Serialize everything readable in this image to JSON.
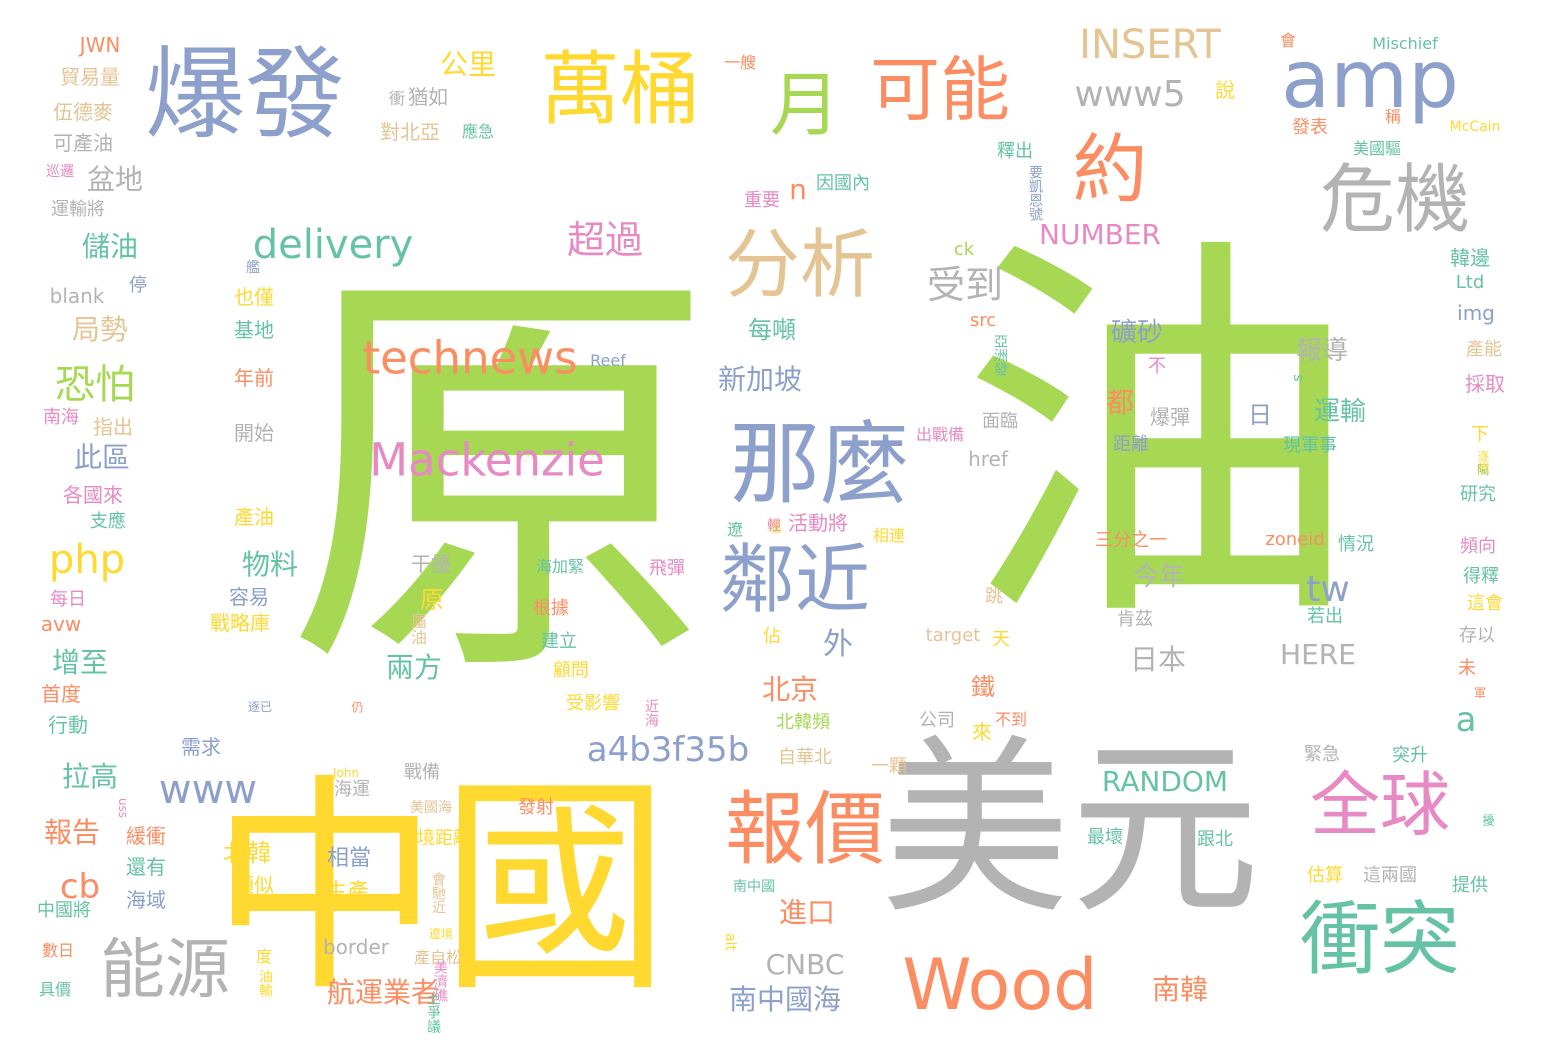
{
  "colors": {
    "green": "#a6d854",
    "yellow": "#ffd92f",
    "gray": "#b3b3b3",
    "blue": "#8da0cb",
    "orange": "#fc8d62",
    "teal": "#66c2a5",
    "pink": "#e78ac3",
    "tan": "#e5c494"
  },
  "words": [
    {
      "text": "原",
      "c": "green"
    },
    {
      "text": "油",
      "c": "green"
    },
    {
      "text": "中國",
      "c": "yellow"
    },
    {
      "text": "美元",
      "c": "gray"
    },
    {
      "text": "爆發",
      "c": "blue"
    },
    {
      "text": "萬桶",
      "c": "yellow"
    },
    {
      "text": "可能",
      "c": "orange"
    },
    {
      "text": "amp",
      "c": "blue"
    },
    {
      "text": "月",
      "c": "green"
    },
    {
      "text": "危機",
      "c": "gray"
    },
    {
      "text": "約",
      "c": "orange"
    },
    {
      "text": "分析",
      "c": "tan"
    },
    {
      "text": "那麼",
      "c": "blue"
    },
    {
      "text": "鄰近",
      "c": "blue"
    },
    {
      "text": "報價",
      "c": "orange"
    },
    {
      "text": "全球",
      "c": "pink"
    },
    {
      "text": "衝突",
      "c": "teal"
    },
    {
      "text": "Wood",
      "c": "orange"
    },
    {
      "text": "能源",
      "c": "gray"
    },
    {
      "text": "technews",
      "c": "orange"
    },
    {
      "text": "Mackenzie",
      "c": "pink"
    },
    {
      "text": "delivery",
      "c": "teal"
    },
    {
      "text": "INSERT",
      "c": "tan"
    },
    {
      "text": "www5",
      "c": "gray"
    },
    {
      "text": "超過",
      "c": "pink"
    },
    {
      "text": "受到",
      "c": "gray"
    },
    {
      "text": "NUMBER",
      "c": "pink"
    },
    {
      "text": "a4b3f35b",
      "c": "blue"
    },
    {
      "text": "www",
      "c": "blue"
    },
    {
      "text": "php",
      "c": "yellow"
    },
    {
      "text": "恐怕",
      "c": "green"
    },
    {
      "text": "RANDOM",
      "c": "teal"
    },
    {
      "text": "cb",
      "c": "orange"
    },
    {
      "text": "tw",
      "c": "blue"
    },
    {
      "text": "HERE",
      "c": "gray"
    },
    {
      "text": "CNBC",
      "c": "gray"
    },
    {
      "text": "南韓",
      "c": "orange"
    },
    {
      "text": "n",
      "c": "orange"
    },
    {
      "text": "a",
      "c": "teal"
    },
    {
      "text": "公里",
      "c": "yellow"
    },
    {
      "text": "盆地",
      "c": "gray"
    },
    {
      "text": "儲油",
      "c": "teal"
    },
    {
      "text": "局勢",
      "c": "tan"
    },
    {
      "text": "此區",
      "c": "blue"
    },
    {
      "text": "增至",
      "c": "teal"
    },
    {
      "text": "拉高",
      "c": "teal"
    },
    {
      "text": "報告",
      "c": "orange"
    },
    {
      "text": "物料",
      "c": "teal"
    },
    {
      "text": "兩方",
      "c": "teal"
    },
    {
      "text": "北京",
      "c": "orange"
    },
    {
      "text": "新加坡",
      "c": "blue"
    },
    {
      "text": "每噸",
      "c": "teal"
    },
    {
      "text": "礦砂",
      "c": "blue"
    },
    {
      "text": "報導",
      "c": "gray"
    },
    {
      "text": "運輸",
      "c": "teal"
    },
    {
      "text": "今年",
      "c": "gray"
    },
    {
      "text": "日本",
      "c": "gray"
    },
    {
      "text": "進口",
      "c": "orange"
    },
    {
      "text": "航運業者",
      "c": "orange"
    },
    {
      "text": "南中國海",
      "c": "blue"
    },
    {
      "text": "北韓",
      "c": "yellow"
    },
    {
      "text": "相當",
      "c": "blue"
    },
    {
      "text": "生產",
      "c": "yellow"
    },
    {
      "text": "外",
      "c": "blue"
    },
    {
      "text": "原",
      "c": "yellow"
    },
    {
      "text": "都",
      "c": "orange"
    },
    {
      "text": "日",
      "c": "blue"
    },
    {
      "text": "JWN",
      "c": "orange"
    },
    {
      "text": "貿易量",
      "c": "tan"
    },
    {
      "text": "伍德麥",
      "c": "tan"
    },
    {
      "text": "可產油",
      "c": "gray"
    },
    {
      "text": "運輸將",
      "c": "gray"
    },
    {
      "text": "blank",
      "c": "gray"
    },
    {
      "text": "停",
      "c": "blue"
    },
    {
      "text": "指出",
      "c": "tan"
    },
    {
      "text": "南海",
      "c": "pink"
    },
    {
      "text": "各國來",
      "c": "pink"
    },
    {
      "text": "支應",
      "c": "teal"
    },
    {
      "text": "每日",
      "c": "pink"
    },
    {
      "text": "avw",
      "c": "orange"
    },
    {
      "text": "首度",
      "c": "orange"
    },
    {
      "text": "行動",
      "c": "teal"
    },
    {
      "text": "緩衝",
      "c": "orange"
    },
    {
      "text": "還有",
      "c": "teal"
    },
    {
      "text": "海域",
      "c": "blue"
    },
    {
      "text": "中國將",
      "c": "teal"
    },
    {
      "text": "數日",
      "c": "orange"
    },
    {
      "text": "具價",
      "c": "teal"
    },
    {
      "text": "類似",
      "c": "yellow"
    },
    {
      "text": "border",
      "c": "gray"
    },
    {
      "text": "也僅",
      "c": "yellow"
    },
    {
      "text": "基地",
      "c": "teal"
    },
    {
      "text": "年前",
      "c": "orange"
    },
    {
      "text": "開始",
      "c": "gray"
    },
    {
      "text": "產油",
      "c": "yellow"
    },
    {
      "text": "干擾",
      "c": "gray"
    },
    {
      "text": "容易",
      "c": "blue"
    },
    {
      "text": "戰略庫",
      "c": "yellow"
    },
    {
      "text": "需求",
      "c": "blue"
    },
    {
      "text": "猶如",
      "c": "gray"
    },
    {
      "text": "對北亞",
      "c": "tan"
    },
    {
      "text": "釋出",
      "c": "teal"
    },
    {
      "text": "因國內",
      "c": "teal"
    },
    {
      "text": "重要",
      "c": "pink"
    },
    {
      "text": "ck",
      "c": "green"
    },
    {
      "text": "src",
      "c": "orange"
    },
    {
      "text": "出戰備",
      "c": "pink"
    },
    {
      "text": "面臨",
      "c": "gray"
    },
    {
      "text": "距離",
      "c": "blue"
    },
    {
      "text": "現軍事",
      "c": "teal"
    },
    {
      "text": "活動將",
      "c": "pink"
    },
    {
      "text": "三分之一",
      "c": "orange"
    },
    {
      "text": "zoneid",
      "c": "orange"
    },
    {
      "text": "情況",
      "c": "teal"
    },
    {
      "text": "肯茲",
      "c": "gray"
    },
    {
      "text": "若出",
      "c": "teal"
    },
    {
      "text": "target",
      "c": "tan"
    },
    {
      "text": "天",
      "c": "yellow"
    },
    {
      "text": "佔",
      "c": "yellow"
    },
    {
      "text": "飛彈",
      "c": "pink"
    },
    {
      "text": "根據",
      "c": "orange"
    },
    {
      "text": "建立",
      "c": "teal"
    },
    {
      "text": "顧問",
      "c": "yellow"
    },
    {
      "text": "受影響",
      "c": "yellow"
    },
    {
      "text": "北韓頻",
      "c": "green"
    },
    {
      "text": "自華北",
      "c": "tan"
    },
    {
      "text": "公司",
      "c": "gray"
    },
    {
      "text": "一顆",
      "c": "tan"
    },
    {
      "text": "緊急",
      "c": "gray"
    },
    {
      "text": "突升",
      "c": "teal"
    },
    {
      "text": "跟北",
      "c": "teal"
    },
    {
      "text": "最壞",
      "c": "teal"
    },
    {
      "text": "估算",
      "c": "yellow"
    },
    {
      "text": "這兩國",
      "c": "gray"
    },
    {
      "text": "提供",
      "c": "teal"
    },
    {
      "text": "戰備",
      "c": "gray"
    },
    {
      "text": "海運",
      "c": "gray"
    },
    {
      "text": "發射",
      "c": "orange"
    },
    {
      "text": "境距離",
      "c": "yellow"
    },
    {
      "text": "未",
      "c": "orange"
    },
    {
      "text": "存以",
      "c": "gray"
    },
    {
      "text": "下",
      "c": "yellow"
    },
    {
      "text": "研究",
      "c": "teal"
    },
    {
      "text": "頻向",
      "c": "pink"
    },
    {
      "text": "得釋",
      "c": "teal"
    },
    {
      "text": "這會",
      "c": "yellow"
    },
    {
      "text": "產能",
      "c": "tan"
    },
    {
      "text": "採取",
      "c": "pink"
    },
    {
      "text": "img",
      "c": "blue"
    },
    {
      "text": "Ltd",
      "c": "teal"
    },
    {
      "text": "韓邊",
      "c": "teal"
    },
    {
      "text": "發表",
      "c": "orange"
    },
    {
      "text": "應急",
      "c": "teal"
    },
    {
      "text": "說",
      "c": "yellow"
    },
    {
      "text": "會",
      "c": "orange"
    },
    {
      "text": "Mischief",
      "c": "teal"
    },
    {
      "text": "McCain",
      "c": "yellow"
    },
    {
      "text": "美國驅",
      "c": "teal"
    },
    {
      "text": "稱",
      "c": "orange"
    },
    {
      "text": "巡邏",
      "c": "pink"
    },
    {
      "text": "一艘",
      "c": "orange"
    },
    {
      "text": "衝",
      "c": "gray"
    },
    {
      "text": "艦",
      "c": "blue"
    },
    {
      "text": "Reef",
      "c": "blue"
    },
    {
      "text": "不",
      "c": "pink"
    },
    {
      "text": "爆彈",
      "c": "gray"
    },
    {
      "text": "href",
      "c": "gray"
    },
    {
      "text": "鐵",
      "c": "orange"
    },
    {
      "text": "來",
      "c": "yellow"
    },
    {
      "text": "跳",
      "c": "tan"
    },
    {
      "text": "alt",
      "c": "yellow"
    },
    {
      "text": "uss",
      "c": "pink"
    },
    {
      "text": "John",
      "c": "yellow"
    },
    {
      "text": "美國海",
      "c": "tan"
    },
    {
      "text": "近海",
      "c": "pink"
    },
    {
      "text": "仍",
      "c": "orange"
    },
    {
      "text": "逐已",
      "c": "blue"
    },
    {
      "text": "相連",
      "c": "yellow"
    },
    {
      "text": "遼",
      "c": "teal"
    },
    {
      "text": "海加緊",
      "c": "teal"
    },
    {
      "text": "產自松",
      "c": "tan"
    },
    {
      "text": "屬油",
      "c": "tan"
    },
    {
      "text": "南中國",
      "c": "teal"
    },
    {
      "text": "不到",
      "c": "orange"
    },
    {
      "text": "美濟礁",
      "c": "pink"
    },
    {
      "text": "邊境",
      "c": "yellow"
    },
    {
      "text": "度",
      "c": "yellow"
    },
    {
      "text": "油輸",
      "c": "yellow"
    },
    {
      "text": "擾",
      "c": "teal"
    },
    {
      "text": "軍",
      "c": "orange"
    },
    {
      "text": "隔",
      "c": "teal"
    },
    {
      "text": "土爭議",
      "c": "teal"
    },
    {
      "text": "亞洲發",
      "c": "teal"
    },
    {
      "text": "s",
      "c": "teal"
    },
    {
      "text": "逐艦",
      "c": "yellow"
    },
    {
      "text": "要凱恩號",
      "c": "blue"
    },
    {
      "text": "會馳近",
      "c": "tan"
    },
    {
      "text": "溫",
      "c": "yellow"
    },
    {
      "text": "輕",
      "c": "pink"
    }
  ]
}
